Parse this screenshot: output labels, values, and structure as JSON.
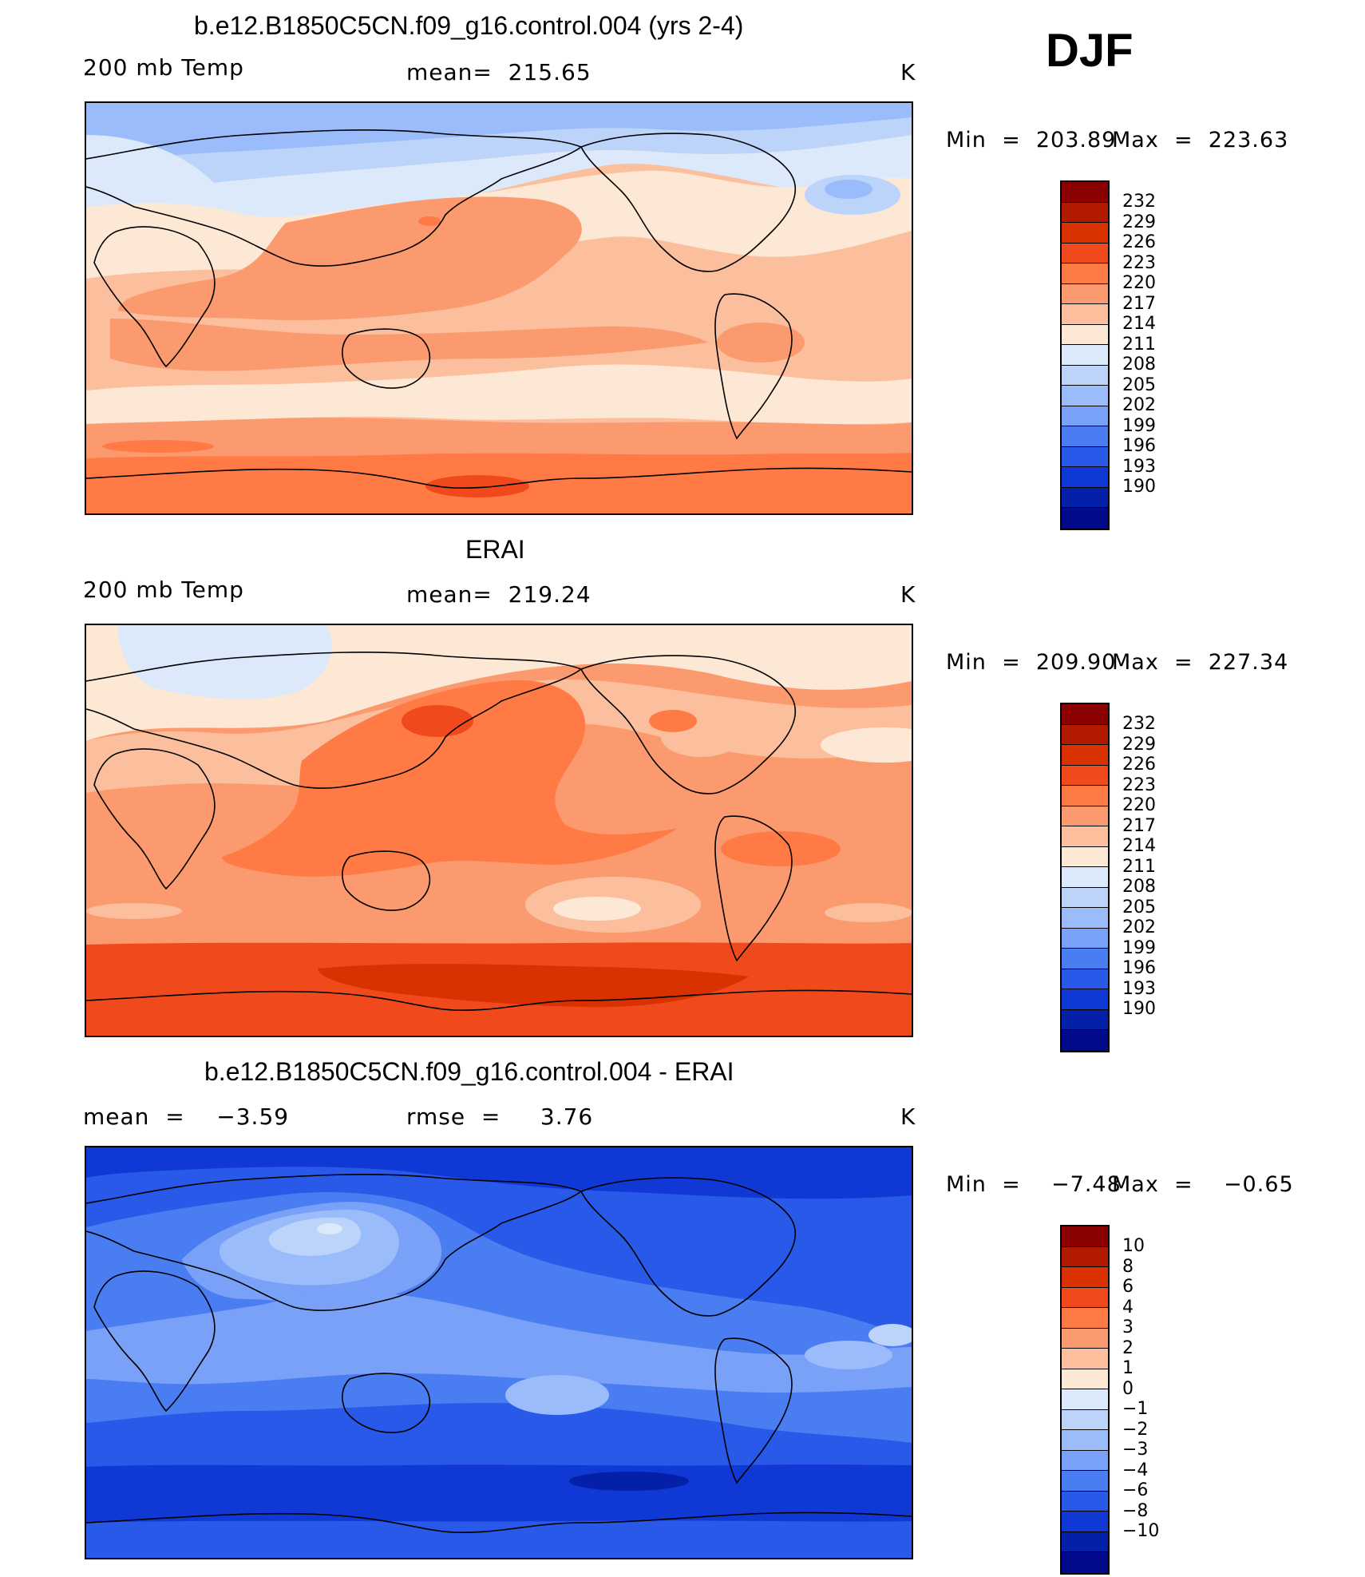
{
  "season": "DJF",
  "panels": [
    {
      "title": "b.e12.B1850C5CN.f09_g16.control.004 (yrs 2-4)",
      "left_label": "200 mb Temp",
      "center_label": "mean=  215.65",
      "units": "K",
      "min_label": "Min  =  203.89",
      "max_label": "Max  =  223.63",
      "colorbar_levels": [
        "232",
        "229",
        "226",
        "223",
        "220",
        "217",
        "214",
        "211",
        "208",
        "205",
        "202",
        "199",
        "196",
        "193",
        "190"
      ]
    },
    {
      "title": "ERAI",
      "left_label": "200 mb Temp",
      "center_label": "mean=  219.24",
      "units": "K",
      "min_label": "Min  =  209.90",
      "max_label": "Max  =  227.34",
      "colorbar_levels": [
        "232",
        "229",
        "226",
        "223",
        "220",
        "217",
        "214",
        "211",
        "208",
        "205",
        "202",
        "199",
        "196",
        "193",
        "190"
      ]
    },
    {
      "title": "b.e12.B1850C5CN.f09_g16.control.004 - ERAI",
      "left_label": "mean  =    −3.59",
      "center_label": "rmse  =     3.76",
      "units": "K",
      "min_label": "Min  =    −7.48",
      "max_label": "Max  =    −0.65",
      "colorbar_levels": [
        "10",
        "8",
        "6",
        "4",
        "3",
        "2",
        "1",
        "0",
        "−1",
        "−2",
        "−3",
        "−4",
        "−6",
        "−8",
        "−10"
      ]
    }
  ],
  "colorbar_colors": [
    "#8b0000",
    "#b21a00",
    "#d93200",
    "#f04a1c",
    "#ff7a45",
    "#fc9a6f",
    "#fcbf9d",
    "#fde8d5",
    "#dbe9fb",
    "#bcd3fa",
    "#9bbcfa",
    "#7aa1f8",
    "#4b7df2",
    "#2859e8",
    "#1038d5",
    "#0520a8",
    "#000a8a"
  ],
  "projection": "cylindrical equidistant, centered on the Pacific"
}
